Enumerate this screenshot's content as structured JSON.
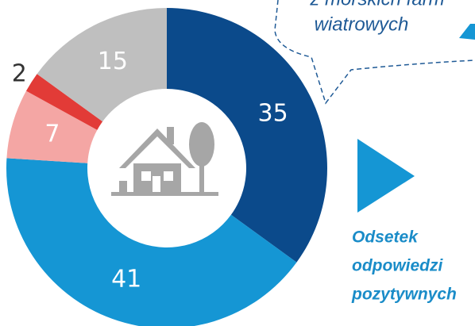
{
  "chart_data": {
    "type": "donut",
    "values": [
      35,
      41,
      7,
      2,
      15
    ],
    "colors": [
      "#0b4a8b",
      "#1596d4",
      "#f4a6a4",
      "#e23b37",
      "#bfbfbf"
    ],
    "callout": [
      "z morskich farm",
      "wiatrowych"
    ],
    "note": [
      "Odsetek",
      "odpowiedzi",
      "pozytywnych"
    ]
  }
}
